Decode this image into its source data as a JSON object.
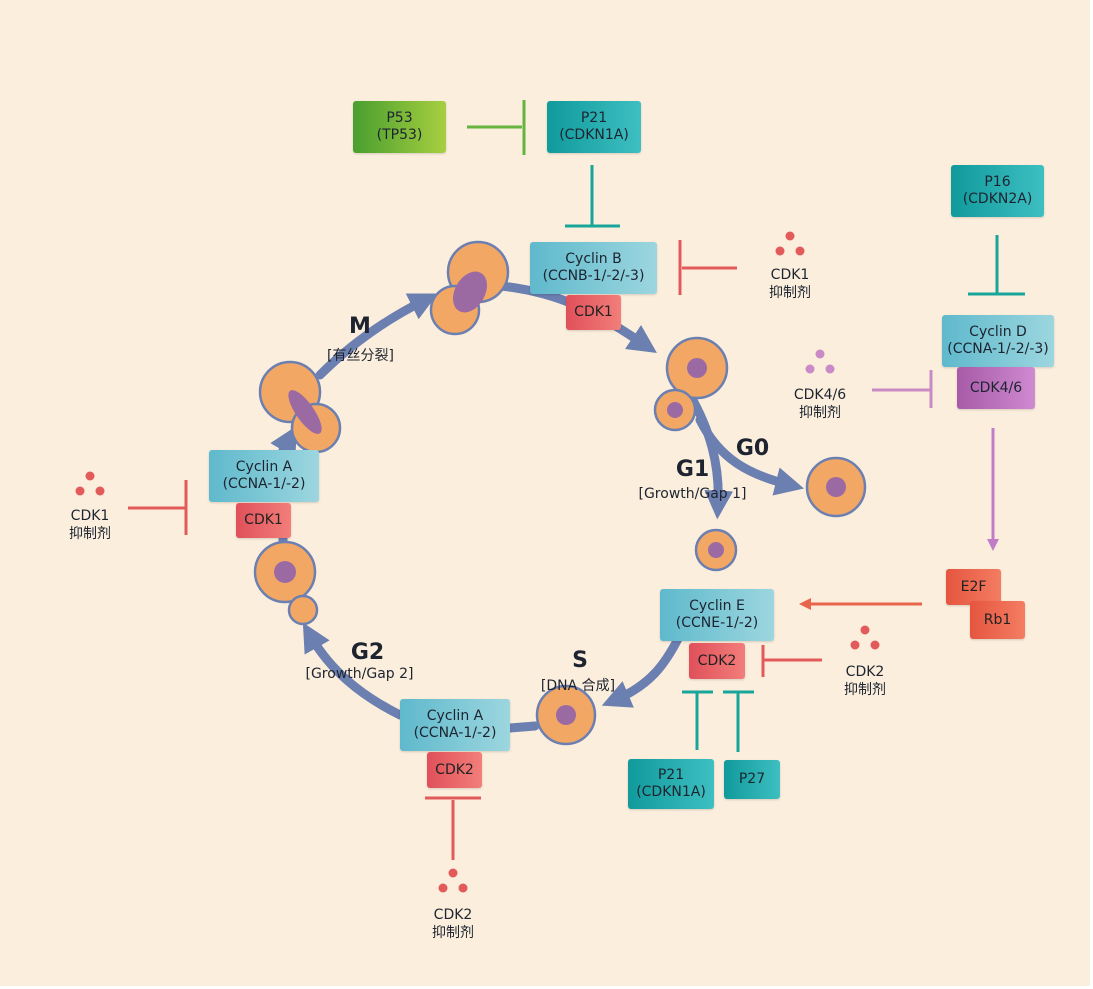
{
  "phases": {
    "M": {
      "label": "M",
      "sub": "[有丝分裂]"
    },
    "G1": {
      "label": "G1",
      "sub": "[Growth/Gap 1]"
    },
    "G0": {
      "label": "G0"
    },
    "S": {
      "label": "S",
      "sub": "[DNA 合成]"
    },
    "G2": {
      "label": "G2",
      "sub": "[Growth/Gap 2]"
    }
  },
  "nodes": {
    "p53": {
      "line1": "P53",
      "line2": "(TP53)"
    },
    "p21_top": {
      "line1": "P21",
      "line2": "(CDKN1A)"
    },
    "p16": {
      "line1": "P16",
      "line2": "(CDKN2A)"
    },
    "cyclin_b": {
      "line1": "Cyclin B",
      "line2": "(CCNB-1/-2/-3)"
    },
    "cdk1_b": {
      "label": "CDK1"
    },
    "cyclin_d": {
      "line1": "Cyclin D",
      "line2": "(CCNA-1/-2/-3)"
    },
    "cdk46": {
      "label": "CDK4/6"
    },
    "cyclin_a_left": {
      "line1": "Cyclin A",
      "line2": "(CCNA-1/-2)"
    },
    "cdk1_a": {
      "label": "CDK1"
    },
    "cyclin_e": {
      "line1": "Cyclin E",
      "line2": "(CCNE-1/-2)"
    },
    "cdk2_e": {
      "label": "CDK2"
    },
    "e2f": {
      "label": "E2F"
    },
    "rb1": {
      "label": "Rb1"
    },
    "cyclin_a_bottom": {
      "line1": "Cyclin A",
      "line2": "(CCNA-1/-2)"
    },
    "cdk2_a": {
      "label": "CDK2"
    },
    "p21_bottom": {
      "line1": "P21",
      "line2": "(CDKN1A)"
    },
    "p27": {
      "label": "P27"
    }
  },
  "inhibitors": {
    "cdk1_top": {
      "line1": "CDK1",
      "line2": "抑制剂"
    },
    "cdk46": {
      "line1": "CDK4/6",
      "line2": "抑制剂"
    },
    "cdk1_left": {
      "line1": "CDK1",
      "line2": "抑制剂"
    },
    "cdk2_right": {
      "line1": "CDK2",
      "line2": "抑制剂"
    },
    "cdk2_bottom": {
      "line1": "CDK2",
      "line2": "抑制剂"
    }
  },
  "colors": {
    "background": "#fbeedd",
    "cycle_arrow": "#6c7fb1",
    "cell_fill": "#f2a864",
    "cell_outline": "#6c7fb1",
    "nucleus": "#9c6aa3",
    "inhibit_red": "#e35a5a",
    "inhibit_teal": "#1aa59a",
    "inhibit_green": "#66b43e",
    "inhibit_pink": "#c98ac5",
    "activate_purple": "#c07cc6",
    "activate_orange": "#e8644c"
  }
}
